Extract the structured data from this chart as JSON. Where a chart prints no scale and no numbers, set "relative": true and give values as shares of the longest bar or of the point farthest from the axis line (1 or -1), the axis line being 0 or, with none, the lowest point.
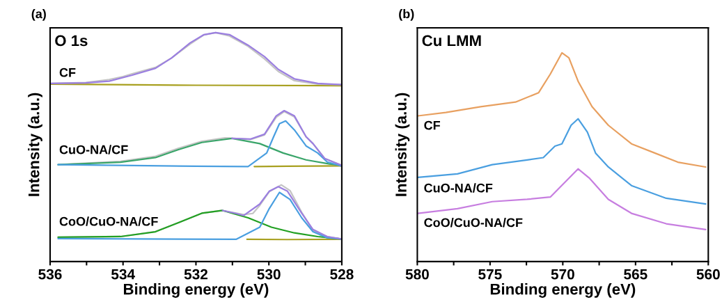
{
  "chart_data": [
    {
      "type": "line",
      "title": "(a)",
      "xlabel": "Binding energy (eV)",
      "ylabel": "Intensity (a.u.)",
      "relative": true,
      "tick_labels": "x",
      "grid": false,
      "marker": "none",
      "line_style": "solid",
      "xlim": [
        536,
        528
      ],
      "xticks": [
        536,
        {
          "value": 535,
          "label": null
        },
        534,
        {
          "value": 533,
          "label": null
        },
        532,
        {
          "value": 531,
          "label": null
        },
        530,
        {
          "value": 529,
          "label": null
        },
        528
      ],
      "annotations": [
        "O 1s",
        "CF",
        "CuO-NA/CF",
        "CoO/CuO-NA/CF"
      ],
      "series": [
        {
          "color": "#a8a020",
          "x": [
            536,
            532,
            528
          ],
          "values": [
            0.775,
            0.77,
            0.768
          ]
        },
        {
          "color": "#c4c4c4",
          "x": [
            535.97,
            535.02,
            534.38,
            534.0,
            533.75,
            533.11,
            532.67,
            532.16,
            531.78,
            531.46,
            531.08,
            530.57,
            530.12,
            529.74,
            529.3,
            528.66,
            528.02
          ],
          "values": [
            0.778,
            0.782,
            0.795,
            0.808,
            0.82,
            0.848,
            0.889,
            0.95,
            0.99,
            1.0,
            0.985,
            0.94,
            0.885,
            0.83,
            0.79,
            0.775,
            0.773
          ]
        },
        {
          "color": "#9b7fe0",
          "x": [
            535.97,
            535.02,
            534.38,
            533.75,
            533.11,
            532.67,
            532.16,
            531.78,
            531.46,
            531.08,
            530.57,
            530.12,
            529.74,
            529.3,
            528.66,
            528.02
          ],
          "values": [
            0.778,
            0.78,
            0.788,
            0.814,
            0.844,
            0.889,
            0.955,
            0.991,
            1.0,
            0.991,
            0.945,
            0.895,
            0.839,
            0.798,
            0.778,
            0.773
          ]
        },
        {
          "color": "#a8a020",
          "x": [
            530.4,
            529.5,
            528.02
          ],
          "values": [
            0.415,
            0.416,
            0.418
          ]
        },
        {
          "color": "#c4c4c4",
          "x": [
            535.78,
            534.07,
            533.11,
            532.48,
            531.84,
            531.2,
            530.9,
            530.5,
            530.12,
            529.8,
            529.58,
            529.3,
            528.98,
            528.79,
            528.47,
            528.02
          ],
          "values": [
            0.423,
            0.438,
            0.46,
            0.495,
            0.525,
            0.54,
            0.537,
            0.533,
            0.553,
            0.63,
            0.655,
            0.632,
            0.545,
            0.515,
            0.45,
            0.421
          ]
        },
        {
          "color": "#3aa56a",
          "x": [
            535.78,
            534.07,
            533.11,
            532.48,
            531.84,
            531.01,
            530.25,
            529.61,
            528.98,
            528.34,
            528.02
          ],
          "values": [
            0.423,
            0.434,
            0.454,
            0.489,
            0.52,
            0.538,
            0.515,
            0.474,
            0.444,
            0.426,
            0.421
          ]
        },
        {
          "color": "#4a9fe0",
          "x": [
            535.78,
            532.0,
            530.57,
            530.06,
            529.87,
            529.71,
            529.54,
            529.3,
            528.98,
            528.66,
            528.4,
            528.02
          ],
          "values": [
            0.423,
            0.416,
            0.415,
            0.474,
            0.545,
            0.602,
            0.614,
            0.575,
            0.505,
            0.474,
            0.435,
            0.418
          ]
        },
        {
          "color": "#9b7fe0",
          "x": [
            531.01,
            530.5,
            530.12,
            529.8,
            529.58,
            529.3,
            528.98,
            528.79,
            528.47,
            528.02
          ],
          "values": [
            0.538,
            0.535,
            0.556,
            0.636,
            0.659,
            0.636,
            0.545,
            0.515,
            0.45,
            0.421
          ]
        },
        {
          "color": "#a8a020",
          "x": [
            530.6,
            529.5,
            528.02
          ],
          "values": [
            0.097,
            0.096,
            0.097
          ]
        },
        {
          "color": "#c4c4c4",
          "x": [
            535.78,
            534.07,
            533.11,
            532.48,
            531.84,
            531.27,
            530.69,
            530.44,
            530.25,
            529.99,
            529.66,
            529.42,
            529.1,
            528.79,
            528.4,
            528.02
          ],
          "values": [
            0.106,
            0.109,
            0.131,
            0.17,
            0.211,
            0.223,
            0.205,
            0.21,
            0.245,
            0.305,
            0.335,
            0.31,
            0.215,
            0.135,
            0.109,
            0.099
          ]
        },
        {
          "color": "#22a022",
          "x": [
            535.78,
            534.07,
            533.11,
            532.48,
            531.84,
            531.27,
            530.57,
            529.93,
            529.3,
            528.66,
            528.02
          ],
          "values": [
            0.106,
            0.109,
            0.13,
            0.17,
            0.211,
            0.223,
            0.191,
            0.15,
            0.125,
            0.109,
            0.099
          ]
        },
        {
          "color": "#4a9fe0",
          "x": [
            535.78,
            532.5,
            530.9,
            530.25,
            529.99,
            529.71,
            529.42,
            529.1,
            528.79,
            528.4,
            528.02
          ],
          "values": [
            0.1,
            0.098,
            0.097,
            0.15,
            0.231,
            0.302,
            0.271,
            0.191,
            0.13,
            0.104,
            0.099
          ]
        },
        {
          "color": "#9b7fe0",
          "x": [
            531.27,
            530.9,
            530.69,
            530.25,
            529.99,
            529.74,
            529.49,
            529.1,
            528.79,
            528.4,
            528.02
          ],
          "values": [
            0.223,
            0.21,
            0.201,
            0.251,
            0.307,
            0.327,
            0.307,
            0.211,
            0.14,
            0.109,
            0.099
          ]
        }
      ]
    },
    {
      "type": "line",
      "title": "(b)",
      "xlabel": "Binding energy (eV)",
      "ylabel": "Intensity (a.u.)",
      "relative": true,
      "tick_labels": "x",
      "grid": false,
      "marker": "none",
      "line_style": "solid",
      "xlim": [
        580,
        560
      ],
      "xticks": [
        580,
        {
          "value": 577.5,
          "label": null
        },
        575,
        {
          "value": 572.5,
          "label": null
        },
        570,
        {
          "value": 567.5,
          "label": null
        },
        565,
        {
          "value": 562.5,
          "label": null
        },
        560
      ],
      "annotations": [
        "Cu LMM",
        "CF",
        "CuO-NA/CF",
        "CoO/CuO-NA/CF"
      ],
      "series": [
        {
          "color": "#e8a060",
          "x": [
            579.95,
            578.04,
            575.65,
            573.25,
            571.66,
            570.86,
            570.06,
            569.58,
            568.95,
            567.99,
            566.87,
            565.28,
            563.68,
            562.09,
            560.18
          ],
          "values": [
            0.698,
            0.714,
            0.742,
            0.764,
            0.809,
            0.898,
            1.0,
            0.976,
            0.864,
            0.742,
            0.653,
            0.564,
            0.52,
            0.476,
            0.453
          ]
        },
        {
          "color": "#4a9fe0",
          "x": [
            579.95,
            577.24,
            574.85,
            572.45,
            571.34,
            570.54,
            570.06,
            569.43,
            568.95,
            568.31,
            567.75,
            566.87,
            565.28,
            562.89,
            560.18
          ],
          "values": [
            0.403,
            0.42,
            0.464,
            0.487,
            0.498,
            0.553,
            0.564,
            0.653,
            0.684,
            0.62,
            0.52,
            0.453,
            0.364,
            0.303,
            0.276
          ]
        },
        {
          "color": "#c77ee0",
          "x": [
            579.95,
            577.24,
            574.85,
            572.45,
            570.86,
            569.75,
            568.95,
            568.15,
            566.87,
            565.28,
            562.89,
            560.18
          ],
          "values": [
            0.231,
            0.253,
            0.287,
            0.298,
            0.309,
            0.387,
            0.444,
            0.398,
            0.298,
            0.231,
            0.181,
            0.153
          ]
        }
      ]
    }
  ]
}
